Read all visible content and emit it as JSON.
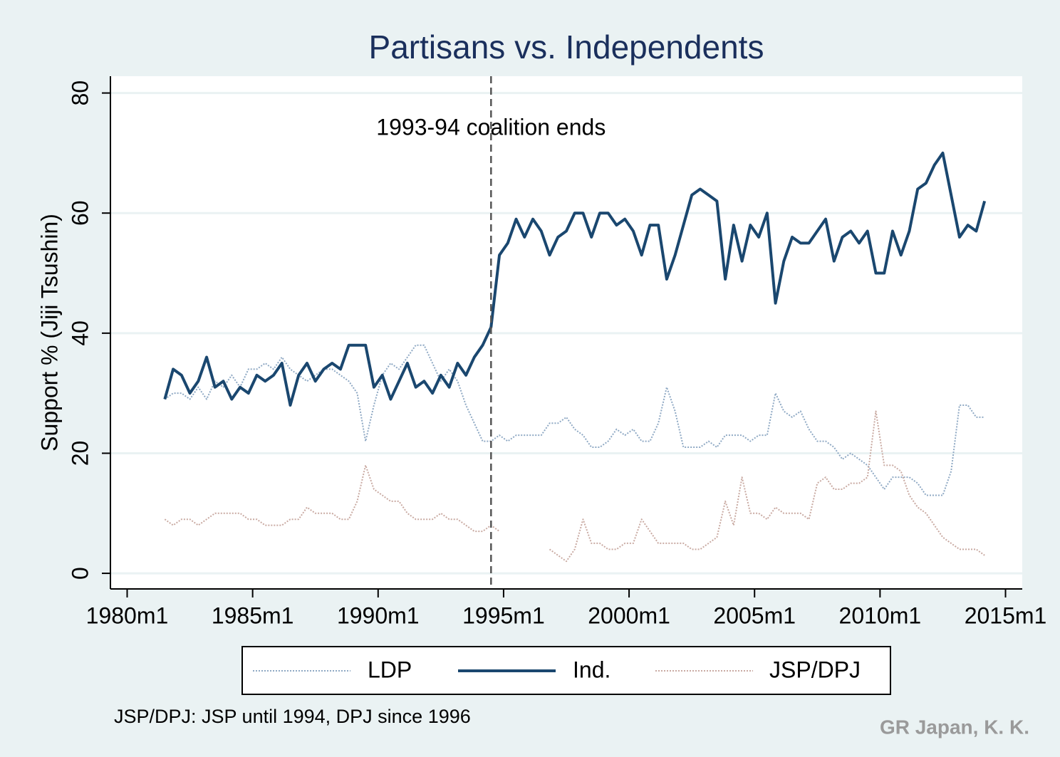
{
  "chart_data": {
    "type": "line",
    "title": "Partisans vs. Independents",
    "y_label": "Support % (Jiji Tsushin)",
    "note": "JSP/DPJ: JSP until 1994, DPJ since 1996",
    "credit": "GR Japan, K. K.",
    "annotation": {
      "text": "1993-94 coalition ends",
      "x": 414,
      "y": 74
    },
    "xline": 414,
    "x": [
      258,
      262,
      266,
      270,
      274,
      278,
      282,
      286,
      290,
      294,
      298,
      302,
      306,
      310,
      314,
      318,
      322,
      326,
      330,
      334,
      338,
      342,
      346,
      350,
      354,
      358,
      362,
      366,
      370,
      374,
      378,
      382,
      386,
      390,
      394,
      398,
      402,
      406,
      410,
      414,
      418,
      422,
      426,
      430,
      434,
      438,
      442,
      446,
      450,
      454,
      458,
      462,
      466,
      470,
      474,
      478,
      482,
      486,
      490,
      494,
      498,
      502,
      506,
      510,
      514,
      518,
      522,
      526,
      530,
      534,
      538,
      542,
      546,
      550,
      554,
      558,
      562,
      566,
      570,
      574,
      578,
      582,
      586,
      590,
      594,
      598,
      602,
      606,
      610,
      614,
      618,
      622,
      626,
      630,
      634,
      638,
      642,
      646,
      650
    ],
    "series": [
      {
        "name": "LDP",
        "color": "#8fa9c4",
        "style": "dotted",
        "width": 2,
        "values": [
          29,
          30,
          30,
          29,
          31,
          29,
          32,
          31,
          33,
          31,
          34,
          34,
          35,
          34,
          36,
          34,
          33,
          32,
          33,
          34,
          34,
          33,
          32,
          30,
          22,
          28,
          33,
          35,
          34,
          36,
          38,
          38,
          35,
          32,
          34,
          32,
          28,
          25,
          22,
          22,
          23,
          22,
          23,
          23,
          23,
          23,
          25,
          25,
          26,
          24,
          23,
          21,
          21,
          22,
          24,
          23,
          24,
          22,
          22,
          25,
          31,
          27,
          21,
          21,
          21,
          22,
          21,
          23,
          23,
          23,
          22,
          23,
          23,
          30,
          27,
          26,
          27,
          24,
          22,
          22,
          21,
          19,
          20,
          19,
          18,
          16,
          14,
          16,
          16,
          16,
          15,
          13,
          13,
          13,
          17,
          28,
          28,
          26,
          26
        ]
      },
      {
        "name": "Ind.",
        "color": "#1a476f",
        "style": "solid",
        "width": 4,
        "values": [
          29,
          34,
          33,
          30,
          32,
          36,
          31,
          32,
          29,
          31,
          30,
          33,
          32,
          33,
          35,
          28,
          33,
          35,
          32,
          34,
          35,
          34,
          38,
          38,
          38,
          31,
          33,
          29,
          32,
          35,
          31,
          32,
          30,
          33,
          31,
          35,
          33,
          36,
          38,
          41,
          53,
          55,
          59,
          56,
          59,
          57,
          53,
          56,
          57,
          60,
          60,
          56,
          60,
          60,
          58,
          59,
          57,
          53,
          58,
          58,
          49,
          53,
          58,
          63,
          64,
          63,
          62,
          49,
          58,
          52,
          58,
          56,
          60,
          45,
          52,
          56,
          55,
          55,
          57,
          59,
          52,
          56,
          57,
          55,
          57,
          50,
          50,
          57,
          53,
          57,
          64,
          65,
          68,
          70,
          63,
          56,
          58,
          57,
          62
        ]
      },
      {
        "name": "JSP/DPJ",
        "color": "#c9aaa2",
        "style": "dotted",
        "width": 2,
        "values": [
          9,
          8,
          9,
          9,
          8,
          9,
          10,
          10,
          10,
          10,
          9,
          9,
          8,
          8,
          8,
          9,
          9,
          11,
          10,
          10,
          10,
          9,
          9,
          12,
          18,
          14,
          13,
          12,
          12,
          10,
          9,
          9,
          9,
          10,
          9,
          9,
          8,
          7,
          7,
          8,
          7,
          null,
          null,
          null,
          null,
          null,
          4,
          3,
          2,
          4,
          9,
          5,
          5,
          4,
          4,
          5,
          5,
          9,
          7,
          5,
          5,
          5,
          5,
          4,
          4,
          5,
          6,
          12,
          8,
          16,
          10,
          10,
          9,
          11,
          10,
          10,
          10,
          9,
          15,
          16,
          14,
          14,
          15,
          15,
          16,
          27,
          18,
          18,
          17,
          13,
          11,
          10,
          8,
          6,
          5,
          4,
          4,
          4,
          3
        ]
      }
    ],
    "xlim": [
      232,
      668
    ],
    "ylim": [
      -2.6,
      82.8
    ],
    "xticks": [
      {
        "value": 240,
        "label": "1980m1"
      },
      {
        "value": 300,
        "label": "1985m1"
      },
      {
        "value": 360,
        "label": "1990m1"
      },
      {
        "value": 420,
        "label": "1995m1"
      },
      {
        "value": 480,
        "label": "2000m1"
      },
      {
        "value": 540,
        "label": "2005m1"
      },
      {
        "value": 600,
        "label": "2010m1"
      },
      {
        "value": 660,
        "label": "2015m1"
      }
    ],
    "yticks": [
      0,
      20,
      40,
      60,
      80
    ],
    "grid": true
  }
}
